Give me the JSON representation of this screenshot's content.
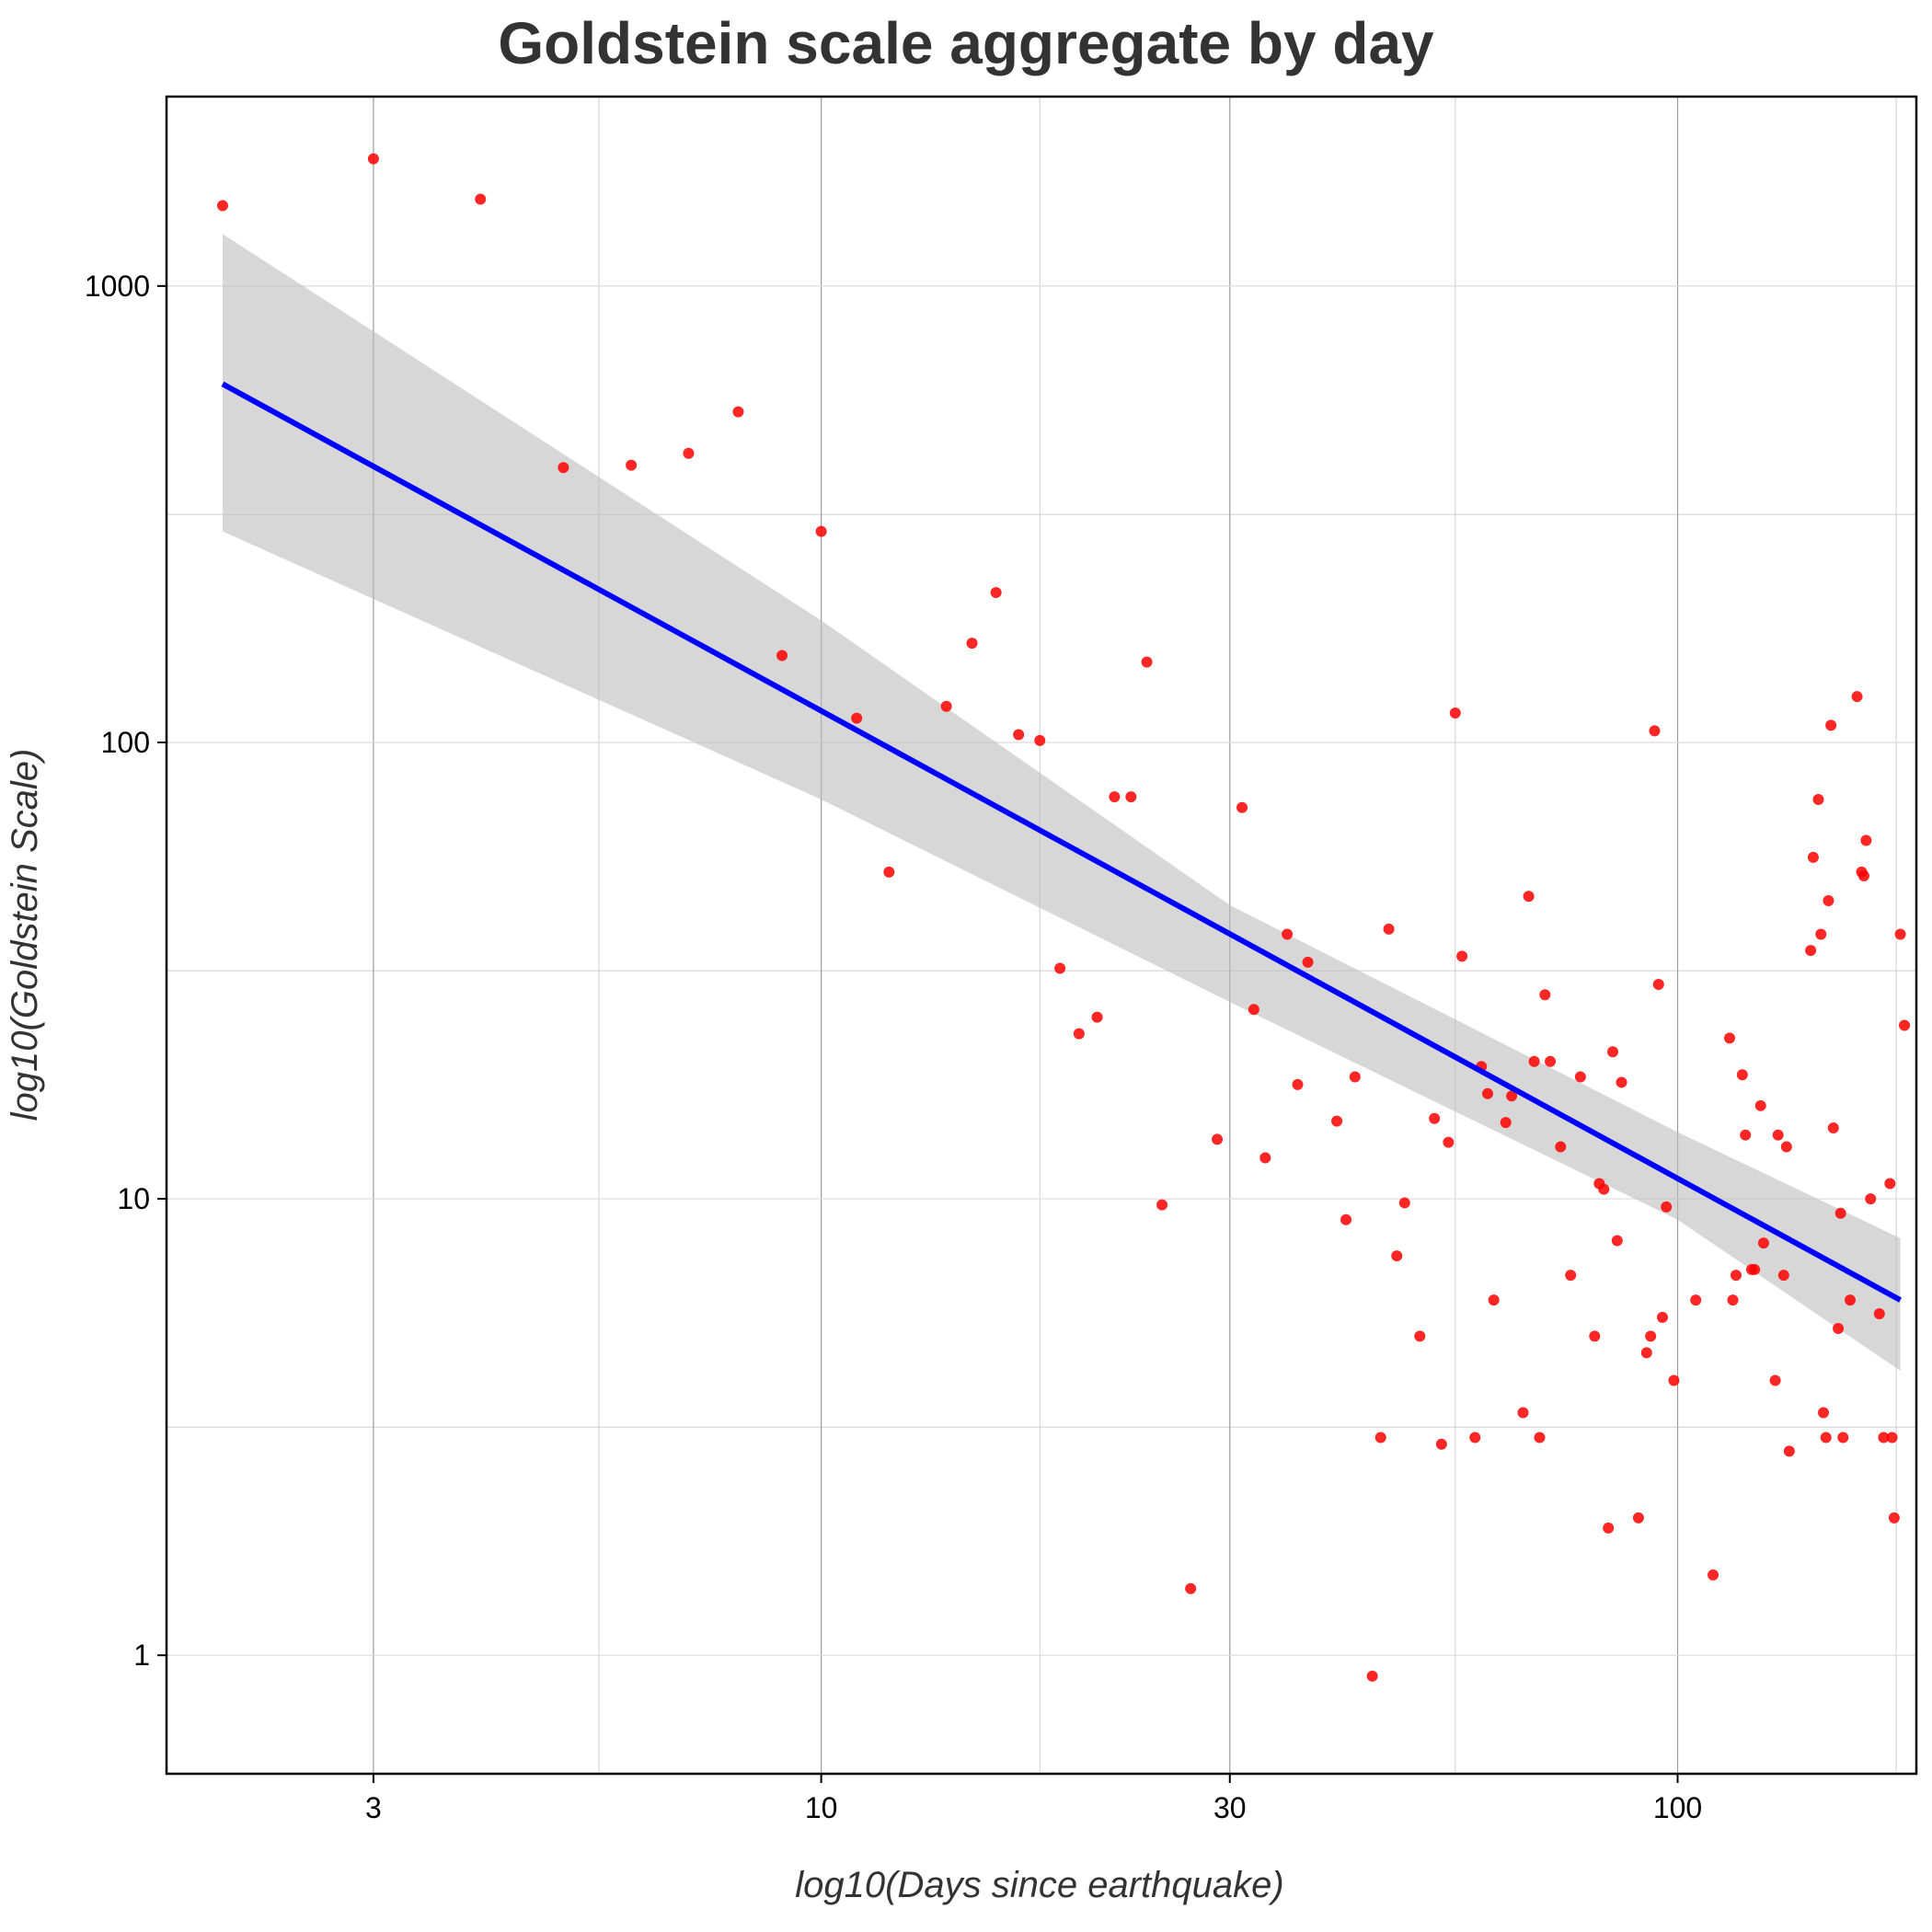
{
  "chart_data": {
    "type": "scatter",
    "title": "Goldstein scale aggregate by day",
    "xlabel": "log10(Days since earthquake)",
    "ylabel": "log10(Goldstein Scale)",
    "x_scale": "log10",
    "y_scale": "log10",
    "xlim": [
      1.72,
      190
    ],
    "ylim": [
      0.55,
      2600
    ],
    "x_ticks": [
      3,
      10,
      30,
      100
    ],
    "x_tick_labels": [
      "3",
      "10",
      "30",
      "100"
    ],
    "x_minor_ticks": [
      5.5,
      18,
      55,
      180
    ],
    "y_ticks": [
      1,
      10,
      100,
      1000
    ],
    "y_tick_labels": [
      "1",
      "10",
      "100",
      "1000"
    ],
    "y_minor_ticks": [
      3.16,
      31.6,
      316
    ],
    "grid": true,
    "colors": {
      "points": "#ff0000",
      "fit_line": "#0000ff",
      "ribbon": "#bdbdbd",
      "grid": "#cfcfcf",
      "title": "#333333"
    },
    "series": [
      {
        "points": [
          [
            2,
            1500
          ],
          [
            3,
            1900
          ],
          [
            4,
            1550
          ],
          [
            5,
            400
          ],
          [
            6,
            405
          ],
          [
            7,
            430
          ],
          [
            8,
            530
          ],
          [
            9,
            155
          ],
          [
            10,
            290
          ],
          [
            11,
            113
          ],
          [
            12,
            52
          ],
          [
            14,
            120
          ],
          [
            15,
            165
          ],
          [
            16,
            213
          ],
          [
            17,
            104
          ],
          [
            18,
            101
          ],
          [
            19,
            32
          ],
          [
            20,
            23
          ],
          [
            21,
            25
          ],
          [
            22,
            76
          ],
          [
            23,
            76
          ],
          [
            24,
            150
          ],
          [
            25,
            9.7
          ],
          [
            27,
            1.4
          ],
          [
            29,
            13.5
          ],
          [
            31,
            72
          ],
          [
            32,
            26
          ],
          [
            33,
            12.3
          ],
          [
            35,
            38
          ],
          [
            36,
            17.8
          ],
          [
            37,
            33
          ],
          [
            40,
            14.8
          ],
          [
            41,
            9
          ],
          [
            42,
            18.5
          ],
          [
            44,
            0.9
          ],
          [
            45,
            3
          ],
          [
            46,
            39
          ],
          [
            47,
            7.5
          ],
          [
            48,
            9.8
          ],
          [
            50,
            5
          ],
          [
            52,
            15
          ],
          [
            53,
            2.9
          ],
          [
            54,
            13.3
          ],
          [
            55,
            116
          ],
          [
            56,
            34
          ],
          [
            58,
            3
          ],
          [
            59,
            19.5
          ],
          [
            60,
            17
          ],
          [
            61,
            6
          ],
          [
            63,
            14.7
          ],
          [
            64,
            16.8
          ],
          [
            66,
            3.4
          ],
          [
            67,
            46
          ],
          [
            68,
            20
          ],
          [
            69,
            3
          ],
          [
            70,
            28
          ],
          [
            71,
            20
          ],
          [
            73,
            13
          ],
          [
            75,
            6.8
          ],
          [
            77,
            18.5
          ],
          [
            80,
            5
          ],
          [
            81,
            10.8
          ],
          [
            82,
            10.5
          ],
          [
            83,
            1.9
          ],
          [
            84,
            21
          ],
          [
            85,
            8.1
          ],
          [
            86,
            18
          ],
          [
            90,
            2
          ],
          [
            92,
            4.6
          ],
          [
            93,
            5
          ],
          [
            94,
            106
          ],
          [
            95,
            29.5
          ],
          [
            96,
            5.5
          ],
          [
            97,
            9.6
          ],
          [
            99,
            4
          ],
          [
            105,
            6
          ],
          [
            110,
            1.5
          ],
          [
            115,
            22.5
          ],
          [
            116,
            6
          ],
          [
            117,
            6.8
          ],
          [
            119,
            18.7
          ],
          [
            120,
            13.8
          ],
          [
            122,
            7
          ],
          [
            123,
            7
          ],
          [
            125,
            16
          ],
          [
            126,
            8
          ],
          [
            130,
            4
          ],
          [
            131,
            13.8
          ],
          [
            133,
            6.8
          ],
          [
            134,
            13
          ],
          [
            135,
            2.8
          ],
          [
            143,
            35
          ],
          [
            144,
            56
          ],
          [
            146,
            75
          ],
          [
            147,
            38
          ],
          [
            148,
            3.4
          ],
          [
            149,
            3
          ],
          [
            150,
            45
          ],
          [
            151,
            109
          ],
          [
            152,
            14.3
          ],
          [
            154,
            5.2
          ],
          [
            155,
            9.3
          ],
          [
            156,
            3
          ],
          [
            159,
            6
          ],
          [
            162,
            126
          ],
          [
            164,
            52
          ],
          [
            165,
            51
          ],
          [
            166,
            61
          ],
          [
            168,
            10
          ],
          [
            172,
            5.6
          ],
          [
            174,
            3
          ],
          [
            177,
            10.8
          ],
          [
            178,
            3
          ],
          [
            179,
            2
          ],
          [
            182,
            38
          ],
          [
            184,
            24
          ]
        ]
      }
    ],
    "fit": {
      "x_range": [
        2,
        182
      ],
      "y_start": 610,
      "y_end": 6,
      "ci_lower": [
        [
          2,
          290
        ],
        [
          10,
          75
        ],
        [
          30,
          27
        ],
        [
          100,
          9
        ],
        [
          182,
          4.2
        ]
      ],
      "ci_upper": [
        [
          2,
          1300
        ],
        [
          10,
          185
        ],
        [
          30,
          44
        ],
        [
          100,
          14
        ],
        [
          182,
          8.2
        ]
      ]
    }
  }
}
